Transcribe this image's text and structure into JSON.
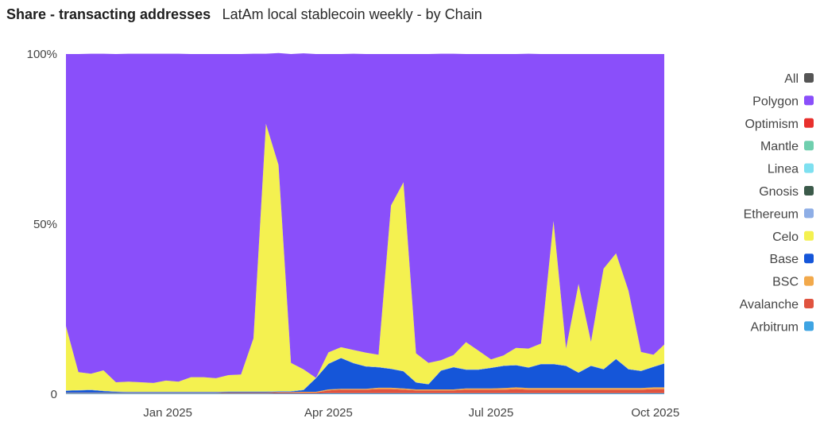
{
  "header": {
    "title": "Share - transacting addresses",
    "subtitle": "LatAm local stablecoin weekly - by Chain"
  },
  "chart_data": {
    "type": "area",
    "stacked": true,
    "title": "Share - transacting addresses",
    "subtitle": "LatAm local stablecoin weekly - by Chain",
    "xlabel": "",
    "ylabel": "",
    "ylim": [
      0,
      100
    ],
    "y_ticks": [
      {
        "value": 0,
        "label": "0"
      },
      {
        "value": 50,
        "label": "50%"
      },
      {
        "value": 100,
        "label": "100%"
      }
    ],
    "x_ticks": [
      {
        "date": "2025-01-01",
        "label": "Jan 2025"
      },
      {
        "date": "2025-04-01",
        "label": "Apr 2025"
      },
      {
        "date": "2025-07-01",
        "label": "Jul 2025"
      },
      {
        "date": "2025-10-01",
        "label": "Oct 2025"
      }
    ],
    "x_range": [
      "2024-11-05",
      "2025-10-06"
    ],
    "grid": false,
    "legend_position": "right",
    "x": [
      "2024-11-05",
      "2024-11-12",
      "2024-11-19",
      "2024-11-26",
      "2024-12-03",
      "2024-12-10",
      "2024-12-17",
      "2024-12-24",
      "2024-12-31",
      "2025-01-07",
      "2025-01-14",
      "2025-01-21",
      "2025-01-28",
      "2025-02-04",
      "2025-02-11",
      "2025-02-18",
      "2025-02-25",
      "2025-03-04",
      "2025-03-11",
      "2025-03-18",
      "2025-03-25",
      "2025-04-01",
      "2025-04-08",
      "2025-04-15",
      "2025-04-22",
      "2025-04-29",
      "2025-05-06",
      "2025-05-13",
      "2025-05-20",
      "2025-05-27",
      "2025-06-03",
      "2025-06-10",
      "2025-06-17",
      "2025-06-24",
      "2025-07-01",
      "2025-07-08",
      "2025-07-15",
      "2025-07-22",
      "2025-07-29",
      "2025-08-05",
      "2025-08-12",
      "2025-08-19",
      "2025-08-26",
      "2025-09-02",
      "2025-09-09",
      "2025-09-16",
      "2025-09-23",
      "2025-09-30",
      "2025-10-06"
    ],
    "series": [
      {
        "name": "Arbitrum",
        "color": "#3ea4e3",
        "values": [
          0.2,
          0.2,
          0.2,
          0.2,
          0.2,
          0.2,
          0.2,
          0.2,
          0.2,
          0.2,
          0.2,
          0.2,
          0.2,
          0.2,
          0.2,
          0.2,
          0.2,
          0.2,
          0.2,
          0.2,
          0.2,
          0.3,
          0.3,
          0.3,
          0.3,
          0.3,
          0.3,
          0.3,
          0.3,
          0.3,
          0.3,
          0.3,
          0.3,
          0.3,
          0.3,
          0.3,
          0.3,
          0.3,
          0.3,
          0.3,
          0.3,
          0.3,
          0.3,
          0.3,
          0.3,
          0.3,
          0.3,
          0.3,
          0.3
        ]
      },
      {
        "name": "Avalanche",
        "color": "#e0533f",
        "values": [
          0.1,
          0.1,
          0.1,
          0.1,
          0.1,
          0.1,
          0.1,
          0.1,
          0.1,
          0.1,
          0.1,
          0.1,
          0.1,
          0.2,
          0.2,
          0.2,
          0.2,
          0.3,
          0.3,
          0.3,
          0.3,
          0.8,
          1.0,
          1.0,
          1.0,
          1.2,
          1.2,
          1.0,
          0.8,
          0.8,
          0.8,
          0.8,
          1.0,
          1.0,
          1.0,
          1.0,
          1.2,
          1.0,
          1.0,
          1.0,
          1.0,
          1.0,
          1.0,
          1.0,
          1.0,
          1.0,
          1.0,
          1.2,
          1.2
        ]
      },
      {
        "name": "BSC",
        "color": "#f2a94b",
        "values": [
          0.1,
          0.1,
          0.1,
          0.1,
          0.1,
          0.1,
          0.1,
          0.1,
          0.1,
          0.1,
          0.1,
          0.1,
          0.1,
          0.1,
          0.1,
          0.1,
          0.1,
          0.1,
          0.1,
          0.2,
          0.2,
          0.3,
          0.3,
          0.3,
          0.3,
          0.4,
          0.4,
          0.4,
          0.3,
          0.3,
          0.3,
          0.3,
          0.4,
          0.4,
          0.4,
          0.5,
          0.5,
          0.5,
          0.5,
          0.5,
          0.5,
          0.5,
          0.5,
          0.5,
          0.5,
          0.5,
          0.5,
          0.5,
          0.5
        ]
      },
      {
        "name": "Base",
        "color": "#1556d9",
        "values": [
          0.6,
          0.7,
          0.8,
          0.5,
          0.3,
          0.2,
          0.2,
          0.2,
          0.2,
          0.2,
          0.2,
          0.2,
          0.2,
          0.2,
          0.2,
          0.2,
          0.2,
          0.2,
          0.2,
          0.5,
          4.0,
          7.5,
          9.0,
          7.5,
          6.5,
          6.0,
          5.5,
          5.0,
          2.0,
          1.5,
          5.5,
          6.5,
          5.5,
          5.5,
          6.0,
          6.5,
          6.5,
          6.0,
          7.0,
          7.0,
          6.5,
          4.5,
          6.5,
          5.5,
          8.5,
          5.5,
          5.0,
          6.0,
          7.0
        ]
      },
      {
        "name": "Ethereum",
        "color": "#8eaee6",
        "values": [
          0.1,
          0.1,
          0.1,
          0.1,
          0.1,
          0.1,
          0.1,
          0.1,
          0.1,
          0.1,
          0.1,
          0.1,
          0.1,
          0.1,
          0.1,
          0.1,
          0.1,
          0.1,
          0.1,
          0.1,
          0.1,
          0.1,
          0.1,
          0.1,
          0.1,
          0.1,
          0.1,
          0.1,
          0.1,
          0.1,
          0.1,
          0.1,
          0.1,
          0.1,
          0.1,
          0.1,
          0.1,
          0.1,
          0.1,
          0.1,
          0.1,
          0.1,
          0.1,
          0.1,
          0.1,
          0.1,
          0.1,
          0.1,
          0.1
        ]
      },
      {
        "name": "Gnosis",
        "color": "#3b5a4a",
        "values": [
          0,
          0,
          0,
          0,
          0,
          0,
          0,
          0,
          0,
          0,
          0,
          0,
          0,
          0,
          0,
          0,
          0,
          0,
          0,
          0,
          0,
          0,
          0,
          0,
          0,
          0,
          0,
          0,
          0,
          0,
          0,
          0,
          0,
          0,
          0,
          0,
          0,
          0,
          0,
          0,
          0,
          0,
          0,
          0,
          0,
          0,
          0,
          0,
          0
        ]
      },
      {
        "name": "Celo",
        "color": "#f4f150",
        "values": [
          18.9,
          5.3,
          4.7,
          6.0,
          2.7,
          3.0,
          2.8,
          2.6,
          3.3,
          3.0,
          4.3,
          4.3,
          4.0,
          4.8,
          5.0,
          15.6,
          78.7,
          66.5,
          8.3,
          6.0,
          0.0,
          3.3,
          3.1,
          3.8,
          4.0,
          3.6,
          48.0,
          55.5,
          8.5,
          6.2,
          3.0,
          3.5,
          8.0,
          5.5,
          2.4,
          3.0,
          5.0,
          5.5,
          6.0,
          42.0,
          5.0,
          26.0,
          7.0,
          29.5,
          31.0,
          23.0,
          5.5,
          3.5,
          5.5
        ]
      },
      {
        "name": "Linea",
        "color": "#7ee0f0",
        "values": [
          0,
          0,
          0,
          0,
          0,
          0,
          0,
          0,
          0,
          0,
          0,
          0,
          0,
          0,
          0,
          0,
          0,
          0,
          0,
          0,
          0,
          0,
          0,
          0,
          0,
          0,
          0,
          0,
          0,
          0,
          0,
          0,
          0,
          0,
          0,
          0,
          0,
          0,
          0,
          0,
          0,
          0,
          0,
          0,
          0,
          0,
          0,
          0,
          0
        ]
      },
      {
        "name": "Mantle",
        "color": "#6fcfae",
        "values": [
          0,
          0,
          0,
          0,
          0,
          0,
          0,
          0,
          0,
          0,
          0,
          0,
          0,
          0,
          0,
          0,
          0,
          0,
          0,
          0,
          0,
          0,
          0,
          0,
          0,
          0,
          0,
          0,
          0,
          0,
          0,
          0,
          0,
          0,
          0,
          0,
          0,
          0,
          0,
          0,
          0,
          0,
          0,
          0,
          0,
          0,
          0,
          0,
          0
        ]
      },
      {
        "name": "Optimism",
        "color": "#e8302d",
        "values": [
          0,
          0,
          0,
          0,
          0,
          0,
          0,
          0,
          0,
          0,
          0,
          0,
          0,
          0,
          0,
          0,
          0,
          0,
          0,
          0,
          0,
          0,
          0,
          0,
          0,
          0,
          0,
          0,
          0,
          0,
          0,
          0,
          0,
          0,
          0,
          0,
          0,
          0,
          0,
          0,
          0,
          0,
          0,
          0,
          0,
          0,
          0,
          0,
          0
        ]
      },
      {
        "name": "Polygon",
        "color": "#8a4ffa",
        "values": [
          80.0,
          93.5,
          94.1,
          93.1,
          96.5,
          96.4,
          96.6,
          96.8,
          96.1,
          96.4,
          95.0,
          95.0,
          95.3,
          94.4,
          94.2,
          83.7,
          20.6,
          32.9,
          90.8,
          92.9,
          95.2,
          87.7,
          86.2,
          87.1,
          87.8,
          88.4,
          44.5,
          37.7,
          88.0,
          90.8,
          90.1,
          88.6,
          84.7,
          87.2,
          89.8,
          88.6,
          86.4,
          86.7,
          85.1,
          49.1,
          86.6,
          67.6,
          84.6,
          63.1,
          58.6,
          69.6,
          87.6,
          88.4,
          85.4
        ]
      },
      {
        "name": "All",
        "color": "#555555",
        "values": [
          0,
          0,
          0,
          0,
          0,
          0,
          0,
          0,
          0,
          0,
          0,
          0,
          0,
          0,
          0,
          0,
          0,
          0,
          0,
          0,
          0,
          0,
          0,
          0,
          0,
          0,
          0,
          0,
          0,
          0,
          0,
          0,
          0,
          0,
          0,
          0,
          0,
          0,
          0,
          0,
          0,
          0,
          0,
          0,
          0,
          0,
          0,
          0,
          0
        ]
      }
    ],
    "legend_order": [
      "All",
      "Polygon",
      "Optimism",
      "Mantle",
      "Linea",
      "Gnosis",
      "Ethereum",
      "Celo",
      "Base",
      "BSC",
      "Avalanche",
      "Arbitrum"
    ]
  }
}
